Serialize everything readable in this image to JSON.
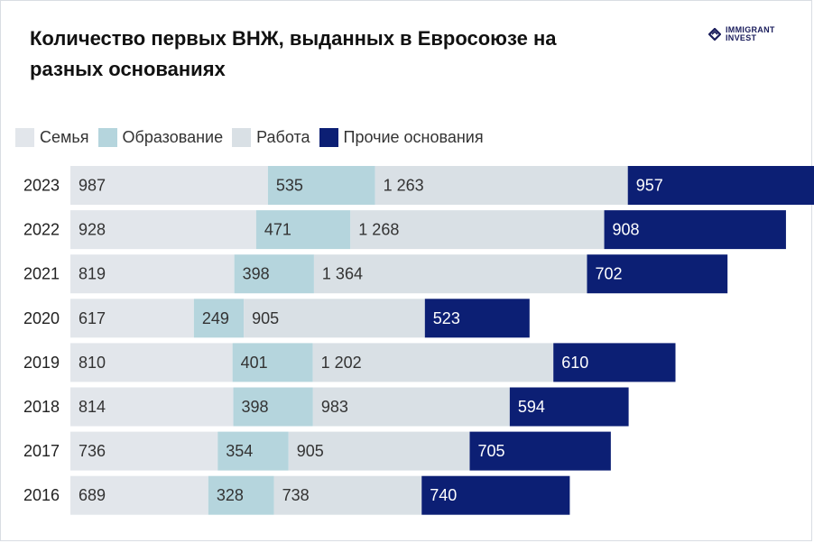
{
  "title": "Количество первых ВНЖ, выданных в Евросоюзе на разных основаниях",
  "logo": {
    "line1": "IMMIGRANT",
    "line2": "INVEST"
  },
  "colors": {
    "family": "#e2e6eb",
    "education": "#b5d5dd",
    "work": "#d9e0e5",
    "other": "#0c1f74"
  },
  "legend": [
    {
      "label": "Семья",
      "color": "#e2e6eb"
    },
    {
      "label": "Образование",
      "color": "#b5d5dd"
    },
    {
      "label": "Работа",
      "color": "#d9e0e5"
    },
    {
      "label": "Прочие основания",
      "color": "#0c1f74"
    }
  ],
  "chart_data": {
    "type": "bar",
    "orientation": "horizontal",
    "stacked": true,
    "categories": [
      "2023",
      "2022",
      "2021",
      "2020",
      "2019",
      "2018",
      "2017",
      "2016"
    ],
    "series": [
      {
        "name": "Семья",
        "values": [
          987,
          928,
          819,
          617,
          810,
          814,
          736,
          689
        ],
        "labels": [
          "987",
          "928",
          "819",
          "617",
          "810",
          "814",
          "736",
          "689"
        ]
      },
      {
        "name": "Образование",
        "values": [
          535,
          471,
          398,
          249,
          401,
          398,
          354,
          328
        ],
        "labels": [
          "535",
          "471",
          "398",
          "249",
          "401",
          "398",
          "354",
          "328"
        ]
      },
      {
        "name": "Работа",
        "values": [
          1263,
          1268,
          1364,
          905,
          1202,
          983,
          905,
          738
        ],
        "labels": [
          "1 263",
          "1 268",
          "1 364",
          "905",
          "1 202",
          "983",
          "905",
          "738"
        ]
      },
      {
        "name": "Прочие основания",
        "values": [
          957,
          908,
          702,
          523,
          610,
          594,
          705,
          740
        ],
        "labels": [
          "957",
          "908",
          "702",
          "523",
          "610",
          "594",
          "705",
          "740"
        ]
      }
    ],
    "legend_position": "top-left",
    "grid": false,
    "axis_ticks_visible": false
  }
}
